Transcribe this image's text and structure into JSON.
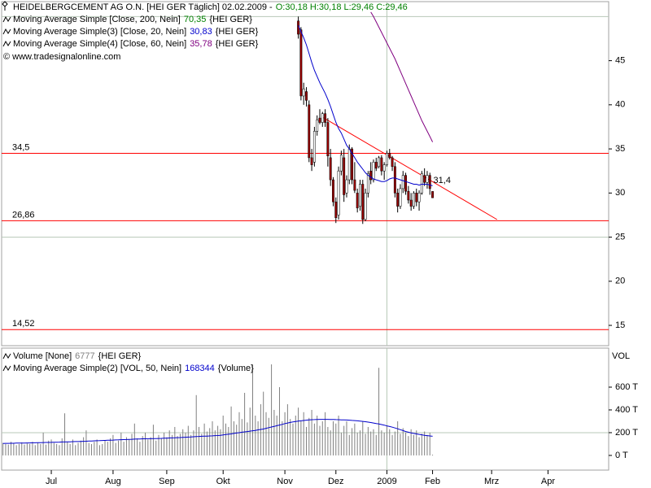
{
  "chart_data": [
    {
      "type": "candlestick",
      "title": "HEIDELBERGCEMENT AG O.N. [HEI GER  Täglich] 02.02.2009 -",
      "title_values": "O:30,18 H:30,18 L:29,46 C:29,46",
      "title_color": "#008000",
      "notes": [
        {
          "name": "Moving Average Simple [Close, 200, Nein]",
          "last": "70,35",
          "suffix": "{HEI GER}",
          "color": "#008000"
        }
      ],
      "copyright": "© www.tradesignalonline.com",
      "categories": [
        null,
        null,
        null,
        null,
        null,
        null,
        null,
        null,
        null,
        null,
        null,
        null,
        null,
        null,
        null,
        null,
        null,
        null,
        null,
        null,
        null,
        null,
        null,
        null,
        null,
        null,
        null,
        null,
        null,
        null,
        null,
        null,
        null,
        null,
        null,
        null,
        null,
        null,
        null,
        null,
        null,
        null,
        null,
        null,
        null,
        null,
        null,
        null,
        null,
        null,
        null
      ],
      "xlim": [
        -110.5,
        115.6
      ],
      "open": [
        49.5,
        48.5,
        41,
        41.5,
        40,
        34,
        33.5,
        37,
        38.5,
        38,
        39,
        38,
        34,
        31.5,
        29,
        27.5,
        32.5,
        34,
        30,
        31.5,
        35,
        31.5,
        30,
        28.5,
        31,
        27,
        30,
        32.5,
        31.5,
        33.5,
        33,
        34,
        32.5,
        33.2,
        34.5,
        34,
        33,
        30,
        28.5,
        30.5,
        32,
        30.2,
        29.2,
        28.5,
        30,
        29,
        30,
        32,
        31.2,
        32,
        30.18
      ],
      "high": [
        50,
        48.8,
        42.5,
        42,
        40.5,
        35,
        37.5,
        38.8,
        39.5,
        39.2,
        39.5,
        38.5,
        35,
        31.8,
        29.5,
        33,
        34.8,
        35,
        32,
        35.5,
        35.2,
        33.5,
        30.5,
        31.5,
        31.5,
        30.5,
        32.5,
        33.5,
        33.8,
        34,
        34.2,
        34.3,
        33.5,
        34.8,
        35,
        34.2,
        33.5,
        30.5,
        31,
        32.5,
        32.3,
        30.8,
        30,
        30.2,
        30.5,
        30.3,
        32.5,
        32.8,
        32.5,
        32.3,
        30.18
      ],
      "low": [
        47.5,
        40.5,
        40,
        39.8,
        33.5,
        32.5,
        33,
        36.5,
        37.8,
        37.5,
        37.5,
        33,
        30.8,
        28.5,
        26.6,
        27,
        32,
        29,
        29.5,
        31,
        31,
        30,
        27.8,
        28,
        26.5,
        26.8,
        29.5,
        31,
        31.2,
        32.5,
        32.8,
        32,
        31.5,
        33,
        33.8,
        32.5,
        29.5,
        27.8,
        28.2,
        30,
        29.8,
        28.8,
        28,
        28.2,
        28.5,
        28,
        29.8,
        30.8,
        30.5,
        29.8,
        29.46
      ],
      "close": [
        48,
        41,
        41.8,
        40.5,
        34,
        33.2,
        37,
        38.3,
        38,
        39,
        38,
        34.2,
        31.5,
        29,
        27.2,
        32.5,
        34.3,
        29.8,
        31.5,
        35,
        31.5,
        30.3,
        28.3,
        31,
        27,
        30,
        32.2,
        31.5,
        33.5,
        32.8,
        34,
        32.5,
        33.2,
        34.5,
        34,
        33,
        30,
        28.5,
        30.5,
        32,
        30.2,
        29.2,
        28.5,
        30,
        29,
        30,
        32.2,
        31.2,
        32,
        30.5,
        29.46
      ],
      "up_color": "#ffffff",
      "down_color": "#990000",
      "series": [
        {
          "name": "Moving Average Simple(3) [Close, 20, Nein]",
          "last": "30,83",
          "suffix": "{HEI GER}",
          "color": "#0000cc",
          "values": [
            49,
            48.3,
            47.6,
            46.8,
            45.8,
            44.8,
            43.9,
            43.2,
            42.5,
            41.9,
            41.3,
            40.6,
            39.8,
            38.9,
            38,
            37.3,
            36.8,
            36.1,
            35.4,
            35,
            34.5,
            34,
            33.5,
            33.1,
            32.7,
            32.3,
            32,
            31.8,
            31.6,
            31.5,
            31.4,
            31.3,
            31.3,
            31.4,
            31.6,
            31.7,
            31.7,
            31.6,
            31.5,
            31.4,
            31.3,
            31.2,
            31.1,
            31,
            31,
            30.9,
            31,
            31,
            31,
            30.9,
            30.83
          ]
        },
        {
          "name": "Moving Average Simple(4) [Close, 60, Nein]",
          "last": "35,78",
          "suffix": "{HEI GER}",
          "color": "#800080",
          "values": [
            null,
            null,
            null,
            null,
            null,
            null,
            null,
            null,
            null,
            null,
            null,
            null,
            null,
            null,
            null,
            null,
            null,
            null,
            null,
            null,
            null,
            null,
            null,
            null,
            null,
            null,
            null,
            50.5,
            50,
            49.4,
            48.8,
            48.2,
            47.6,
            47,
            46.4,
            45.8,
            45.2,
            44.5,
            43.8,
            43.1,
            42.4,
            41.7,
            41,
            40.3,
            39.6,
            38.9,
            38.2,
            37.6,
            37,
            36.4,
            35.78
          ]
        }
      ],
      "levels": [
        {
          "value": 34.5,
          "label": "34,5"
        },
        {
          "value": 26.86,
          "label": "26,86"
        },
        {
          "value": 14.52,
          "label": "14,52"
        }
      ],
      "level_color": "#ff0000",
      "trendline": {
        "x": [
          9,
          74
        ],
        "values": [
          38.6,
          27
        ],
        "label": {
          "value": 31.4,
          "label": "31,4"
        },
        "color": "#ff0000"
      },
      "ylim": [
        12.7,
        51.6
      ],
      "yticks": [
        15,
        20,
        25,
        30,
        35,
        40,
        45
      ],
      "grid_y": [
        25,
        50
      ],
      "grid_x": [
        33
      ]
    },
    {
      "type": "bar",
      "y_label": "VOL",
      "categories": [
        null,
        null,
        null,
        null,
        null,
        null,
        null,
        null,
        null,
        null,
        null,
        null,
        null,
        null,
        null,
        null,
        null,
        null,
        null,
        null,
        null,
        null,
        null,
        null,
        null,
        null,
        null,
        null,
        null,
        null,
        null,
        null,
        null,
        null,
        null,
        null,
        null,
        null,
        null,
        null,
        null,
        null,
        null,
        null,
        null,
        null,
        null,
        null,
        null,
        null,
        null,
        null,
        null,
        null,
        null,
        null,
        null,
        null,
        null,
        null,
        null,
        null,
        null,
        null,
        null,
        null,
        null,
        null,
        null,
        null,
        null,
        null,
        null,
        null,
        null,
        null,
        null,
        null,
        null,
        null,
        null,
        null,
        null,
        null,
        null,
        null,
        null,
        null,
        null,
        null,
        null,
        null,
        null,
        null,
        null,
        null,
        null,
        null,
        null,
        null,
        null,
        null,
        null,
        null,
        null,
        null,
        null,
        null,
        null,
        null,
        null,
        null,
        null,
        null,
        null,
        null,
        null,
        null,
        null,
        null,
        null,
        null,
        null,
        null,
        null,
        null,
        null,
        null,
        null,
        null,
        null,
        null,
        null,
        null,
        null,
        null,
        null,
        null,
        null,
        null,
        null,
        null,
        null,
        null,
        null,
        null,
        null,
        null,
        null,
        null,
        null,
        null,
        null,
        null,
        null,
        null,
        null,
        null,
        null,
        null,
        null
      ],
      "xlim": [
        -0.5,
        225.6
      ],
      "xticks": [
        {
          "value": 18,
          "label": "Jul"
        },
        {
          "value": 41,
          "label": "Aug"
        },
        {
          "value": 61,
          "label": "Sep"
        },
        {
          "value": 82,
          "label": "Okt"
        },
        {
          "value": 105,
          "label": "Nov"
        },
        {
          "value": 124,
          "label": "Dez"
        },
        {
          "value": 143,
          "label": "2009"
        },
        {
          "value": 160,
          "label": "Feb"
        },
        {
          "value": 182,
          "label": "Mrz"
        },
        {
          "value": 203,
          "label": "Apr"
        }
      ],
      "series": [
        {
          "name": "Volume [None]",
          "last": "6777",
          "suffix": "{HEI GER}",
          "color": "#808080",
          "values": [
            110000,
            100000,
            95000,
            120000,
            105000,
            90000,
            100000,
            115000,
            95000,
            105000,
            100000,
            120000,
            90000,
            110000,
            100000,
            200000,
            95000,
            130000,
            140000,
            110000,
            100000,
            90000,
            150000,
            370000,
            120000,
            100000,
            140000,
            90000,
            110000,
            130000,
            160000,
            220000,
            110000,
            100000,
            120000,
            140000,
            90000,
            100000,
            130000,
            120000,
            150000,
            180000,
            110000,
            130000,
            200000,
            120000,
            160000,
            140000,
            190000,
            280000,
            150000,
            120000,
            170000,
            200000,
            140000,
            160000,
            270000,
            130000,
            180000,
            150000,
            200000,
            160000,
            220000,
            180000,
            250000,
            170000,
            190000,
            230000,
            200000,
            260000,
            180000,
            220000,
            530000,
            250000,
            190000,
            280000,
            210000,
            240000,
            300000,
            220000,
            260000,
            230000,
            350000,
            280000,
            250000,
            430000,
            300000,
            270000,
            380000,
            320000,
            550000,
            290000,
            420000,
            800000,
            350000,
            300000,
            450000,
            560000,
            380000,
            330000,
            800000,
            400000,
            350000,
            600000,
            300000,
            380000,
            450000,
            320000,
            280000,
            350000,
            420000,
            300000,
            380000,
            250000,
            330000,
            400000,
            280000,
            350000,
            260000,
            300000,
            380000,
            250000,
            220000,
            300000,
            280000,
            350000,
            200000,
            260000,
            300000,
            180000,
            240000,
            280000,
            200000,
            220000,
            300000,
            190000,
            250000,
            210000,
            230000,
            180000,
            770000,
            220000,
            200000,
            260000,
            230000,
            180000,
            210000,
            300000,
            190000,
            240000,
            200000,
            170000,
            230000,
            180000,
            220000,
            160000,
            190000,
            210000,
            180000,
            200000,
            6777
          ]
        },
        {
          "name": "Moving Average Simple(2) [VOL, 50, Nein]",
          "last": "168344",
          "suffix": "{Volume}",
          "color": "#0000cc",
          "type": "line",
          "values": [
            105000,
            106000,
            106000,
            107000,
            107000,
            108000,
            108000,
            109000,
            109000,
            110000,
            110000,
            111000,
            111000,
            112000,
            112000,
            113000,
            114000,
            114000,
            115000,
            116000,
            116000,
            117000,
            118000,
            118000,
            119000,
            120000,
            121000,
            122000,
            122000,
            123000,
            124000,
            125000,
            126000,
            127000,
            128000,
            129000,
            130000,
            131000,
            132000,
            133000,
            134000,
            135000,
            136000,
            137000,
            138000,
            139000,
            140000,
            141000,
            142000,
            143000,
            144000,
            145000,
            146000,
            146000,
            147000,
            147000,
            148000,
            148000,
            149000,
            150000,
            151000,
            152000,
            153000,
            154000,
            155000,
            156000,
            157000,
            158000,
            160000,
            161000,
            162000,
            164000,
            166000,
            167000,
            168000,
            169000,
            170000,
            171000,
            172000,
            174000,
            175000,
            177000,
            180000,
            183000,
            186000,
            189000,
            193000,
            197000,
            200000,
            204000,
            207000,
            210000,
            213000,
            217000,
            220000,
            225000,
            228000,
            232000,
            238000,
            244000,
            250000,
            255000,
            261000,
            267000,
            273000,
            280000,
            285000,
            290000,
            294000,
            298000,
            301000,
            304000,
            307000,
            310000,
            312000,
            314000,
            315000,
            316000,
            317000,
            317000,
            317000,
            317000,
            316000,
            316000,
            315000,
            314000,
            313000,
            312000,
            311000,
            310000,
            308000,
            306000,
            304000,
            302000,
            299000,
            296000,
            293000,
            289000,
            285000,
            280000,
            276000,
            271000,
            266000,
            260000,
            254000,
            248000,
            241000,
            234000,
            226000,
            218000,
            210000,
            204000,
            198000,
            193000,
            189000,
            185000,
            181000,
            177000,
            174000,
            171000,
            168344
          ]
        }
      ],
      "ylim": [
        -129000,
        943000
      ],
      "yticks": [
        {
          "value": 0,
          "label": "0 T"
        },
        {
          "value": 200000,
          "label": "200 T"
        },
        {
          "value": 400000,
          "label": "400 T"
        },
        {
          "value": 600000,
          "label": "600 T"
        }
      ],
      "grid_y": [
        200000
      ],
      "grid_x": [
        143
      ]
    }
  ]
}
